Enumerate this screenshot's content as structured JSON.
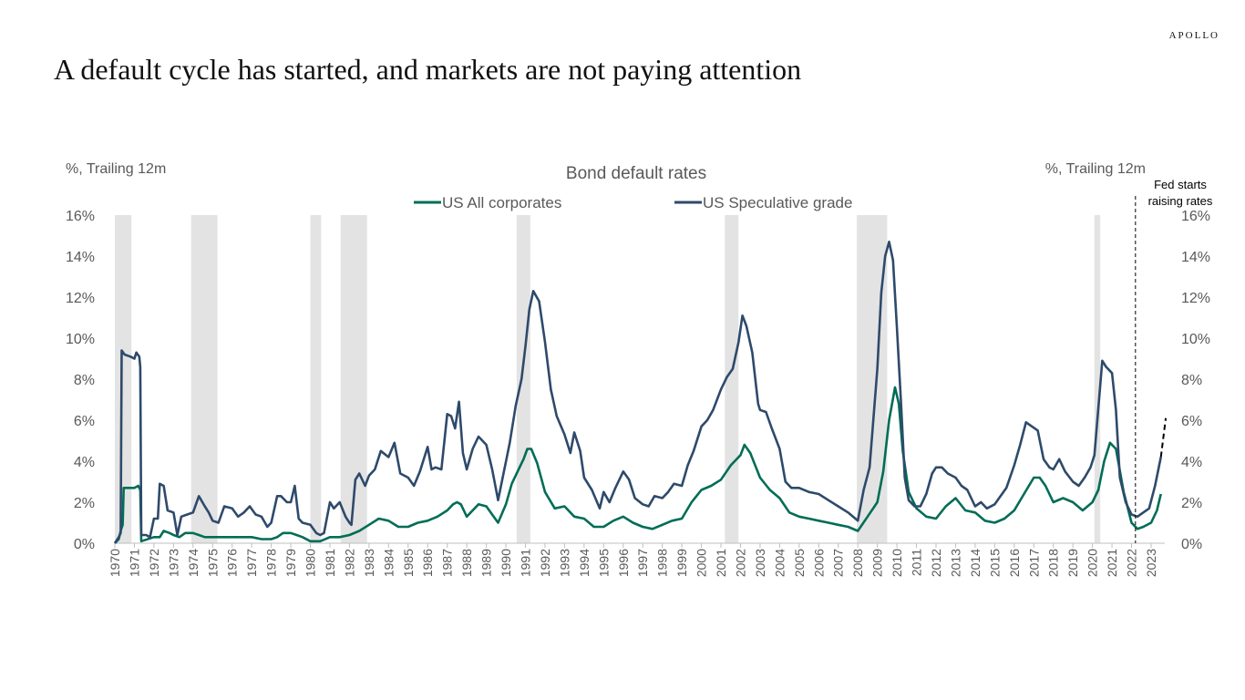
{
  "brand": "APOLLO",
  "headline": "A default cycle has started, and markets are not paying attention",
  "chart_data": {
    "type": "line",
    "title": "Bond default rates",
    "ylabel_left": "%, Trailing 12m",
    "ylabel_right": "%, Trailing 12m",
    "ylim": [
      0,
      16
    ],
    "yticks": [
      "0%",
      "2%",
      "4%",
      "6%",
      "8%",
      "10%",
      "12%",
      "14%",
      "16%"
    ],
    "xlim": [
      1970,
      2023.7
    ],
    "xticks": [
      "1970",
      "1971",
      "1972",
      "1973",
      "1974",
      "1975",
      "1976",
      "1977",
      "1978",
      "1979",
      "1980",
      "1981",
      "1982",
      "1983",
      "1984",
      "1985",
      "1986",
      "1987",
      "1988",
      "1989",
      "1990",
      "1991",
      "1992",
      "1993",
      "1994",
      "1995",
      "1996",
      "1997",
      "1998",
      "1999",
      "2000",
      "2001",
      "2002",
      "2003",
      "2004",
      "2005",
      "2006",
      "2007",
      "2008",
      "2009",
      "2010",
      "2011",
      "2012",
      "2013",
      "2014",
      "2015",
      "2016",
      "2017",
      "2018",
      "2019",
      "2020",
      "2021",
      "2022",
      "2023"
    ],
    "legend_position": "top-center",
    "grid": false,
    "recessions": [
      [
        1970.0,
        1970.85
      ],
      [
        1973.9,
        1975.25
      ],
      [
        1980.0,
        1980.55
      ],
      [
        1981.55,
        1982.9
      ],
      [
        1990.55,
        1991.25
      ],
      [
        2001.2,
        2001.9
      ],
      [
        2007.95,
        2009.5
      ],
      [
        2020.1,
        2020.4
      ]
    ],
    "annotation": {
      "text_lines": [
        "Fed starts",
        "raising rates"
      ],
      "x": 2022.2
    },
    "projection": {
      "x": [
        2023.5,
        2023.75
      ],
      "y": [
        4.2,
        6.1
      ]
    },
    "series": [
      {
        "name": "US All corporates",
        "color": "#006d56",
        "x": [
          1970,
          1970.2,
          1970.3,
          1970.4,
          1970.45,
          1970.6,
          1971.0,
          1971.2,
          1971.3,
          1971.35,
          1972.0,
          1972.3,
          1972.5,
          1972.8,
          1973.0,
          1973.3,
          1973.6,
          1974.0,
          1974.3,
          1974.6,
          1975.0,
          1975.5,
          1976.0,
          1976.5,
          1977.0,
          1977.5,
          1978.0,
          1978.3,
          1978.6,
          1979.0,
          1979.3,
          1979.6,
          1980.0,
          1980.5,
          1981.0,
          1981.5,
          1982.0,
          1982.5,
          1983.0,
          1983.5,
          1984.0,
          1984.5,
          1985.0,
          1985.5,
          1986.0,
          1986.5,
          1987.0,
          1987.3,
          1987.5,
          1987.7,
          1988.0,
          1988.3,
          1988.6,
          1989.0,
          1989.3,
          1989.6,
          1990.0,
          1990.3,
          1990.6,
          1990.9,
          1991.1,
          1991.3,
          1991.6,
          1992.0,
          1992.5,
          1993.0,
          1993.5,
          1994.0,
          1994.5,
          1995.0,
          1995.5,
          1996.0,
          1996.5,
          1997.0,
          1997.5,
          1998.0,
          1998.5,
          1999.0,
          1999.5,
          2000.0,
          2000.5,
          2001.0,
          2001.5,
          2002.0,
          2002.2,
          2002.5,
          2003.0,
          2003.5,
          2004.0,
          2004.5,
          2005.0,
          2005.5,
          2006.0,
          2006.5,
          2007.0,
          2007.5,
          2008.0,
          2008.5,
          2009.0,
          2009.3,
          2009.6,
          2009.9,
          2010.1,
          2010.3,
          2010.6,
          2011.0,
          2011.5,
          2012.0,
          2012.5,
          2013.0,
          2013.5,
          2014.0,
          2014.5,
          2015.0,
          2015.5,
          2016.0,
          2016.5,
          2017.0,
          2017.3,
          2017.6,
          2018.0,
          2018.5,
          2019.0,
          2019.5,
          2020.0,
          2020.3,
          2020.6,
          2020.9,
          2021.2,
          2021.6,
          2022.0,
          2022.3,
          2022.6,
          2023.0,
          2023.3,
          2023.5
        ],
        "values": [
          0.0,
          0.2,
          0.6,
          0.9,
          2.7,
          2.7,
          2.7,
          2.8,
          2.6,
          0.1,
          0.3,
          0.3,
          0.6,
          0.5,
          0.4,
          0.3,
          0.5,
          0.5,
          0.4,
          0.3,
          0.3,
          0.3,
          0.3,
          0.3,
          0.3,
          0.2,
          0.2,
          0.3,
          0.5,
          0.5,
          0.4,
          0.3,
          0.1,
          0.1,
          0.3,
          0.3,
          0.4,
          0.6,
          0.9,
          1.2,
          1.1,
          0.8,
          0.8,
          1.0,
          1.1,
          1.3,
          1.6,
          1.9,
          2.0,
          1.9,
          1.3,
          1.6,
          1.9,
          1.8,
          1.4,
          1.0,
          1.9,
          2.9,
          3.5,
          4.1,
          4.6,
          4.6,
          3.9,
          2.5,
          1.7,
          1.8,
          1.3,
          1.2,
          0.8,
          0.8,
          1.1,
          1.3,
          1.0,
          0.8,
          0.7,
          0.9,
          1.1,
          1.2,
          2.0,
          2.6,
          2.8,
          3.1,
          3.8,
          4.3,
          4.8,
          4.4,
          3.2,
          2.6,
          2.2,
          1.5,
          1.3,
          1.2,
          1.1,
          1.0,
          0.9,
          0.8,
          0.6,
          1.3,
          2.0,
          3.5,
          6.0,
          7.6,
          6.8,
          4.5,
          2.5,
          1.7,
          1.3,
          1.2,
          1.8,
          2.2,
          1.6,
          1.5,
          1.1,
          1.0,
          1.2,
          1.6,
          2.4,
          3.2,
          3.2,
          2.8,
          2.0,
          2.2,
          2.0,
          1.6,
          2.0,
          2.6,
          4.0,
          4.9,
          4.6,
          2.5,
          1.0,
          0.7,
          0.8,
          1.0,
          1.6,
          2.4
        ]
      },
      {
        "name": "US Speculative grade",
        "color": "#2e4a6b",
        "x": [
          1970,
          1970.2,
          1970.3,
          1970.35,
          1970.5,
          1970.8,
          1971.0,
          1971.1,
          1971.25,
          1971.3,
          1971.35,
          1971.6,
          1971.8,
          1972.0,
          1972.2,
          1972.3,
          1972.5,
          1972.7,
          1973.0,
          1973.2,
          1973.4,
          1973.7,
          1974.0,
          1974.3,
          1974.6,
          1974.8,
          1975.0,
          1975.3,
          1975.6,
          1976.0,
          1976.3,
          1976.6,
          1976.9,
          1977.2,
          1977.5,
          1977.8,
          1978.0,
          1978.3,
          1978.5,
          1978.8,
          1979.0,
          1979.2,
          1979.4,
          1979.6,
          1980.0,
          1980.3,
          1980.5,
          1980.7,
          1981.0,
          1981.2,
          1981.5,
          1981.8,
          1982.0,
          1982.1,
          1982.3,
          1982.5,
          1982.8,
          1983.0,
          1983.3,
          1983.6,
          1984.0,
          1984.3,
          1984.6,
          1985.0,
          1985.3,
          1985.6,
          1986.0,
          1986.2,
          1986.4,
          1986.7,
          1987.0,
          1987.2,
          1987.4,
          1987.6,
          1987.8,
          1988.0,
          1988.3,
          1988.6,
          1989.0,
          1989.3,
          1989.6,
          1989.9,
          1990.2,
          1990.5,
          1990.8,
          1991.0,
          1991.2,
          1991.4,
          1991.7,
          1992.0,
          1992.3,
          1992.6,
          1993.0,
          1993.3,
          1993.5,
          1993.8,
          1994.0,
          1994.4,
          1994.8,
          1995.0,
          1995.3,
          1995.6,
          1996.0,
          1996.3,
          1996.6,
          1997.0,
          1997.3,
          1997.6,
          1998.0,
          1998.3,
          1998.6,
          1999.0,
          1999.3,
          1999.6,
          2000.0,
          2000.3,
          2000.6,
          2001.0,
          2001.3,
          2001.6,
          2001.9,
          2002.1,
          2002.3,
          2002.6,
          2002.9,
          2003.0,
          2003.3,
          2003.6,
          2004.0,
          2004.3,
          2004.6,
          2005.0,
          2005.5,
          2006.0,
          2006.5,
          2007.0,
          2007.5,
          2008.0,
          2008.3,
          2008.6,
          2009.0,
          2009.2,
          2009.4,
          2009.6,
          2009.8,
          2010.0,
          2010.2,
          2010.4,
          2010.6,
          2010.9,
          2011.2,
          2011.5,
          2011.8,
          2012.0,
          2012.3,
          2012.6,
          2013.0,
          2013.3,
          2013.6,
          2014.0,
          2014.3,
          2014.6,
          2015.0,
          2015.3,
          2015.6,
          2016.0,
          2016.3,
          2016.6,
          2016.9,
          2017.2,
          2017.5,
          2017.8,
          2018.0,
          2018.3,
          2018.6,
          2019.0,
          2019.3,
          2019.6,
          2019.9,
          2020.1,
          2020.3,
          2020.5,
          2020.7,
          2021.0,
          2021.2,
          2021.4,
          2021.7,
          2022.0,
          2022.3,
          2022.6,
          2022.9,
          2023.2,
          2023.5
        ],
        "values": [
          0.0,
          0.3,
          0.5,
          9.4,
          9.2,
          9.1,
          9.0,
          9.3,
          9.1,
          8.6,
          0.4,
          0.4,
          0.3,
          1.2,
          1.2,
          2.9,
          2.8,
          1.6,
          1.5,
          0.4,
          1.3,
          1.4,
          1.5,
          2.3,
          1.8,
          1.5,
          1.1,
          1.0,
          1.8,
          1.7,
          1.3,
          1.5,
          1.8,
          1.4,
          1.3,
          0.8,
          1.0,
          2.3,
          2.3,
          2.0,
          2.0,
          2.8,
          1.2,
          1.0,
          0.9,
          0.5,
          0.4,
          0.5,
          2.0,
          1.7,
          2.0,
          1.3,
          1.0,
          0.9,
          3.1,
          3.4,
          2.8,
          3.3,
          3.6,
          4.5,
          4.2,
          4.9,
          3.4,
          3.2,
          2.8,
          3.5,
          4.7,
          3.6,
          3.7,
          3.6,
          6.3,
          6.2,
          5.6,
          6.9,
          4.4,
          3.6,
          4.6,
          5.2,
          4.8,
          3.6,
          2.1,
          3.5,
          4.9,
          6.7,
          8.0,
          9.6,
          11.4,
          12.3,
          11.8,
          9.8,
          7.5,
          6.2,
          5.3,
          4.4,
          5.4,
          4.5,
          3.2,
          2.6,
          1.7,
          2.5,
          2.0,
          2.7,
          3.5,
          3.1,
          2.2,
          1.9,
          1.8,
          2.3,
          2.2,
          2.5,
          2.9,
          2.8,
          3.8,
          4.5,
          5.7,
          6.0,
          6.5,
          7.5,
          8.1,
          8.5,
          9.8,
          11.1,
          10.6,
          9.3,
          6.8,
          6.5,
          6.4,
          5.6,
          4.6,
          3.0,
          2.7,
          2.7,
          2.5,
          2.4,
          2.1,
          1.8,
          1.5,
          1.1,
          2.6,
          3.7,
          8.5,
          12.2,
          14.0,
          14.7,
          13.8,
          10.5,
          7.0,
          3.2,
          2.1,
          1.8,
          1.8,
          2.4,
          3.4,
          3.7,
          3.7,
          3.4,
          3.2,
          2.8,
          2.6,
          1.8,
          2.0,
          1.7,
          1.9,
          2.3,
          2.7,
          3.8,
          4.8,
          5.9,
          5.7,
          5.5,
          4.1,
          3.7,
          3.6,
          4.1,
          3.5,
          3.0,
          2.8,
          3.2,
          3.7,
          4.3,
          6.6,
          8.9,
          8.6,
          8.3,
          6.5,
          3.2,
          2.0,
          1.4,
          1.3,
          1.5,
          1.7,
          2.8,
          4.2
        ]
      }
    ]
  }
}
